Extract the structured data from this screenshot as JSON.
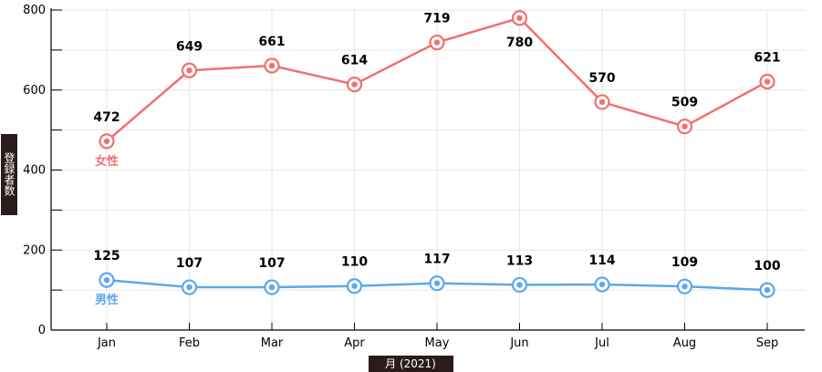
{
  "chart_data": {
    "type": "line",
    "categories": [
      "Jan",
      "Feb",
      "Mar",
      "Apr",
      "May",
      "Jun",
      "Jul",
      "Aug",
      "Sep"
    ],
    "series": [
      {
        "name": "女性",
        "color": "#f07070",
        "values": [
          472,
          649,
          661,
          614,
          719,
          780,
          570,
          509,
          621
        ]
      },
      {
        "name": "男性",
        "color": "#5aa8ec",
        "values": [
          125,
          107,
          107,
          110,
          117,
          113,
          114,
          109,
          100
        ]
      }
    ],
    "xlabel": "月 (2021)",
    "ylabel": "登録者数",
    "ylim": [
      0,
      800
    ],
    "yticks": [
      0,
      200,
      400,
      600,
      800
    ],
    "grid": true,
    "axis_title_bg": "#2a1c1c"
  }
}
